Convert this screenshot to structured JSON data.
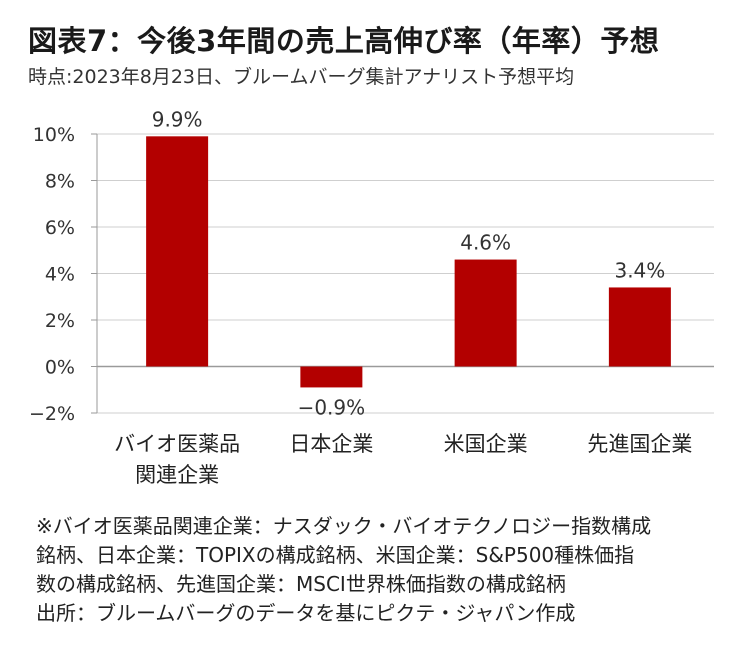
{
  "title": "図表7：今後3年間の売上高伸び率（年率）予想",
  "subtitle": "時点:2023年8月23日、ブルームバーグ集計アナリスト予想平均",
  "chart_data": {
    "type": "bar",
    "categories": [
      "バイオ医薬品\n関連企業",
      "日本企業",
      "米国企業",
      "先進国企業"
    ],
    "values": [
      9.9,
      -0.9,
      4.6,
      3.4
    ],
    "data_labels": [
      "9.9%",
      "−0.9%",
      "4.6%",
      "3.4%"
    ],
    "y_ticks": [
      -2,
      0,
      2,
      4,
      6,
      8,
      10
    ],
    "y_tick_labels": [
      "−2%",
      "0%",
      "2%",
      "4%",
      "6%",
      "8%",
      "10%"
    ],
    "ylim": [
      -2,
      10
    ],
    "grid": true,
    "bar_color": "#b30000"
  },
  "notes": [
    "※バイオ医薬品関連企業：ナスダック・バイオテクノロジー指数構成",
    "銘柄、日本企業：TOPIXの構成銘柄、米国企業：S&P500種株価指",
    "数の構成銘柄、先進国企業：MSCI世界株価指数の構成銘柄",
    "出所：ブルームバーグのデータを基にピクテ・ジャパン作成"
  ]
}
